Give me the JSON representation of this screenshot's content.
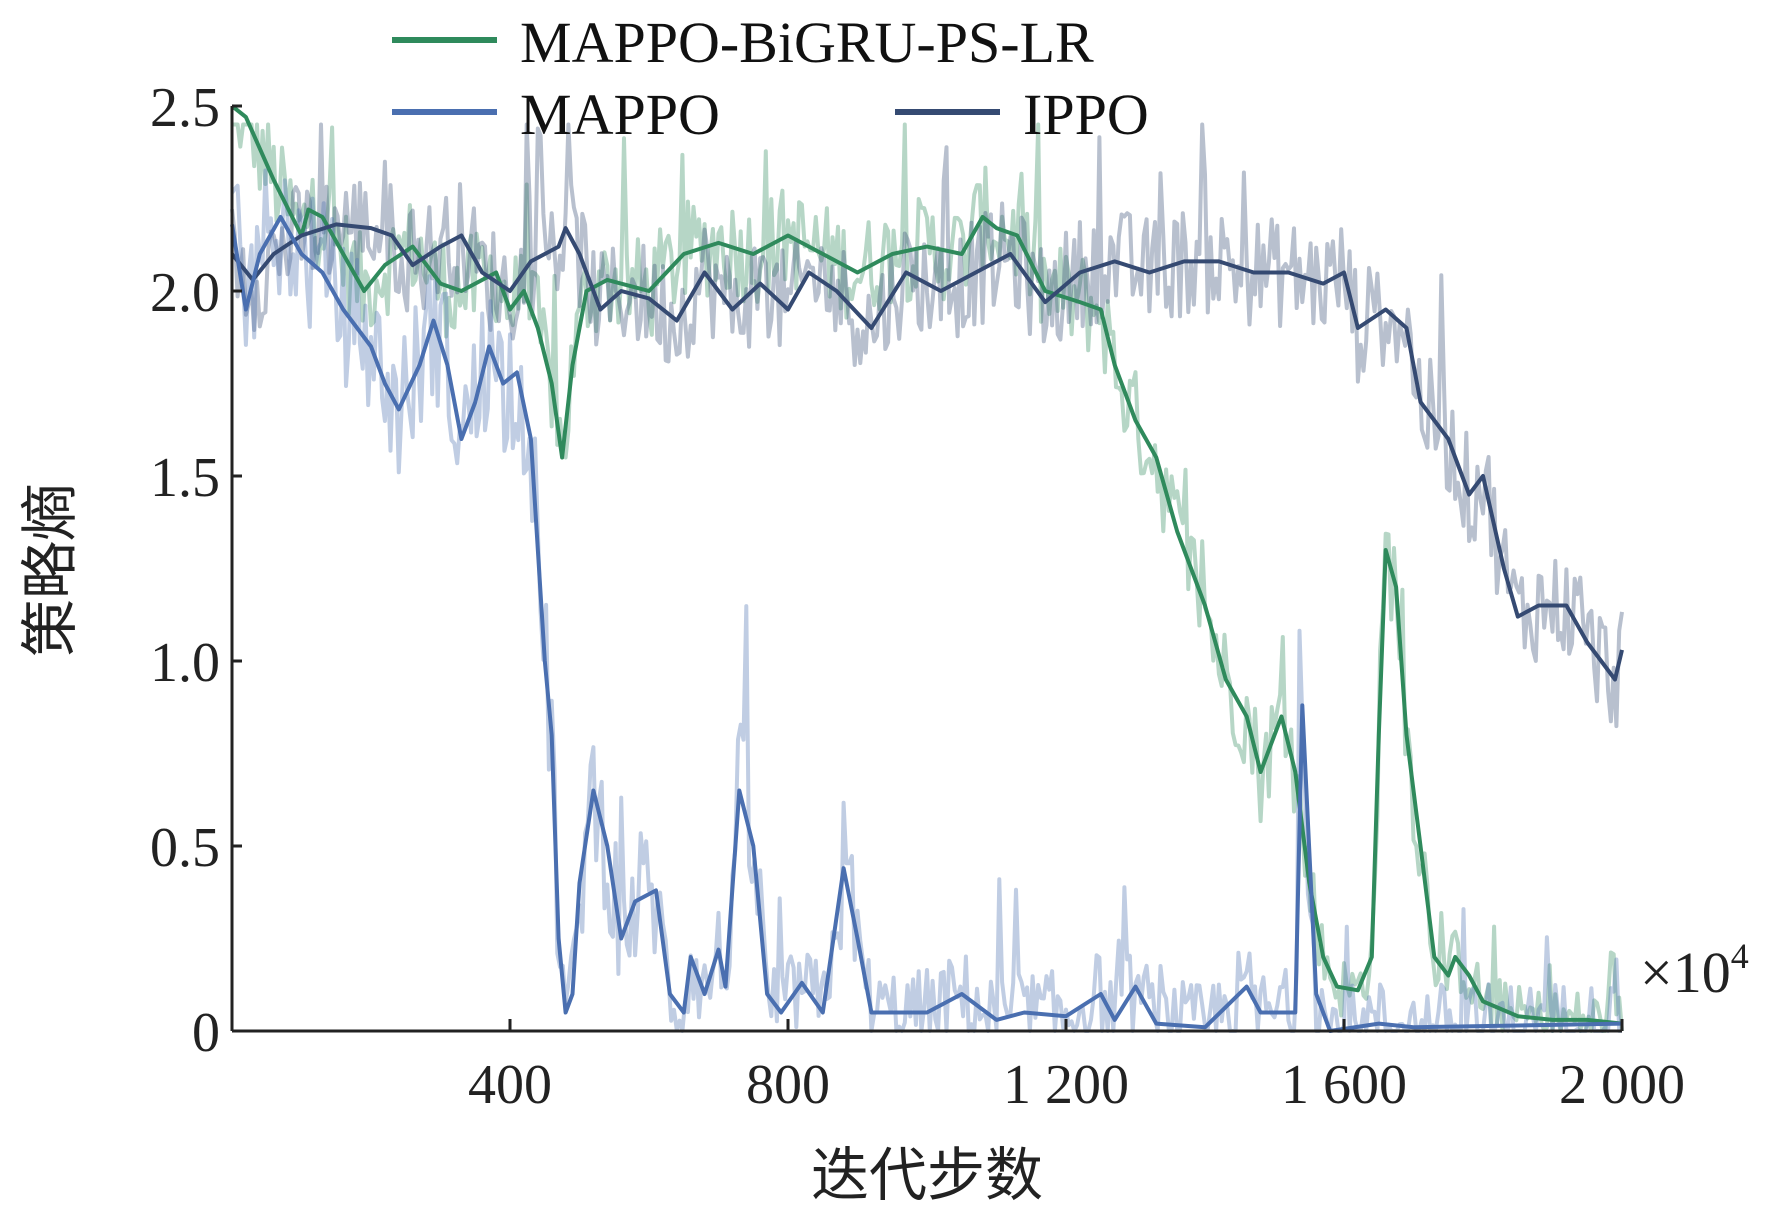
{
  "chart_data": {
    "type": "line",
    "title": "",
    "xlabel": "迭代步数",
    "ylabel": "策略熵",
    "x_multiplier": "×10",
    "x_multiplier_exp": "4",
    "xlim": [
      0,
      2000
    ],
    "ylim": [
      0,
      2.5
    ],
    "xticks": [
      400,
      800,
      1200,
      1600,
      2000
    ],
    "xtick_labels": [
      "400",
      "800",
      "1 200",
      "1 600",
      "2 000"
    ],
    "yticks": [
      0,
      0.5,
      1.0,
      1.5,
      2.0,
      2.5
    ],
    "ytick_labels": [
      "0",
      "0.5",
      "1.0",
      "1.5",
      "2.0",
      "2.5"
    ],
    "grid": false,
    "legend_position": "top",
    "series": [
      {
        "name": "MAPPO-BiGRU-PS-LR",
        "color": "#2f8a5c",
        "noise_amplitude": 0.14,
        "x": [
          0,
          20,
          60,
          100,
          110,
          130,
          160,
          190,
          220,
          260,
          300,
          330,
          380,
          400,
          420,
          440,
          460,
          475,
          490,
          510,
          540,
          600,
          650,
          700,
          750,
          800,
          850,
          900,
          950,
          1000,
          1050,
          1080,
          1100,
          1130,
          1170,
          1220,
          1250,
          1270,
          1300,
          1330,
          1360,
          1400,
          1430,
          1460,
          1480,
          1500,
          1510,
          1530,
          1550,
          1570,
          1590,
          1620,
          1640,
          1650,
          1660,
          1675,
          1690,
          1710,
          1730,
          1750,
          1760,
          1780,
          1800,
          1850,
          1900,
          1950,
          2000
        ],
        "y": [
          2.5,
          2.47,
          2.3,
          2.15,
          2.22,
          2.2,
          2.1,
          2.0,
          2.07,
          2.12,
          2.02,
          2.0,
          2.05,
          1.95,
          2.0,
          1.9,
          1.75,
          1.55,
          1.8,
          2.0,
          2.03,
          2.0,
          2.1,
          2.13,
          2.1,
          2.15,
          2.1,
          2.05,
          2.1,
          2.12,
          2.1,
          2.2,
          2.17,
          2.15,
          2.0,
          1.97,
          1.95,
          1.8,
          1.65,
          1.55,
          1.35,
          1.15,
          0.95,
          0.85,
          0.7,
          0.8,
          0.85,
          0.7,
          0.4,
          0.2,
          0.12,
          0.11,
          0.2,
          0.8,
          1.3,
          1.2,
          0.8,
          0.5,
          0.2,
          0.15,
          0.2,
          0.15,
          0.08,
          0.04,
          0.03,
          0.03,
          0.02
        ]
      },
      {
        "name": "MAPPO",
        "color": "#4a6fb0",
        "noise_amplitude": 0.2,
        "x": [
          0,
          20,
          40,
          70,
          100,
          130,
          160,
          200,
          220,
          240,
          270,
          290,
          310,
          330,
          350,
          370,
          390,
          410,
          430,
          450,
          460,
          470,
          480,
          490,
          500,
          520,
          540,
          560,
          580,
          610,
          630,
          650,
          660,
          680,
          700,
          710,
          730,
          750,
          770,
          790,
          820,
          850,
          880,
          900,
          920,
          1000,
          1050,
          1100,
          1140,
          1200,
          1250,
          1270,
          1300,
          1330,
          1400,
          1460,
          1480,
          1530,
          1540,
          1560,
          1580,
          1650,
          1700,
          2000
        ],
        "y": [
          2.18,
          1.95,
          2.1,
          2.2,
          2.1,
          2.05,
          1.95,
          1.85,
          1.75,
          1.68,
          1.8,
          1.92,
          1.8,
          1.6,
          1.7,
          1.85,
          1.75,
          1.78,
          1.6,
          1.0,
          0.8,
          0.25,
          0.05,
          0.1,
          0.4,
          0.65,
          0.5,
          0.25,
          0.35,
          0.38,
          0.1,
          0.05,
          0.2,
          0.1,
          0.22,
          0.12,
          0.65,
          0.5,
          0.1,
          0.05,
          0.13,
          0.05,
          0.44,
          0.25,
          0.05,
          0.05,
          0.1,
          0.03,
          0.05,
          0.04,
          0.1,
          0.03,
          0.12,
          0.02,
          0.01,
          0.12,
          0.05,
          0.05,
          0.88,
          0.1,
          0.0,
          0.02,
          0.01,
          0.02
        ]
      },
      {
        "name": "IPPO",
        "color": "#354a72",
        "noise_amplitude": 0.15,
        "x": [
          0,
          30,
          60,
          100,
          150,
          200,
          230,
          260,
          300,
          330,
          360,
          400,
          430,
          470,
          480,
          500,
          530,
          560,
          600,
          640,
          680,
          720,
          760,
          800,
          830,
          870,
          920,
          970,
          1020,
          1070,
          1120,
          1170,
          1220,
          1270,
          1320,
          1370,
          1420,
          1470,
          1520,
          1570,
          1600,
          1620,
          1660,
          1690,
          1710,
          1750,
          1780,
          1800,
          1830,
          1850,
          1880,
          1920,
          1950,
          1990,
          2000
        ],
        "y": [
          2.1,
          2.03,
          2.1,
          2.15,
          2.18,
          2.17,
          2.15,
          2.07,
          2.12,
          2.15,
          2.05,
          2.0,
          2.08,
          2.12,
          2.17,
          2.1,
          1.95,
          2.0,
          1.98,
          1.92,
          2.05,
          1.95,
          2.02,
          1.95,
          2.05,
          2.0,
          1.9,
          2.05,
          2.0,
          2.05,
          2.1,
          1.97,
          2.05,
          2.08,
          2.05,
          2.08,
          2.08,
          2.05,
          2.05,
          2.02,
          2.05,
          1.9,
          1.95,
          1.9,
          1.7,
          1.6,
          1.45,
          1.5,
          1.25,
          1.12,
          1.15,
          1.15,
          1.05,
          0.95,
          1.03
        ]
      }
    ]
  }
}
